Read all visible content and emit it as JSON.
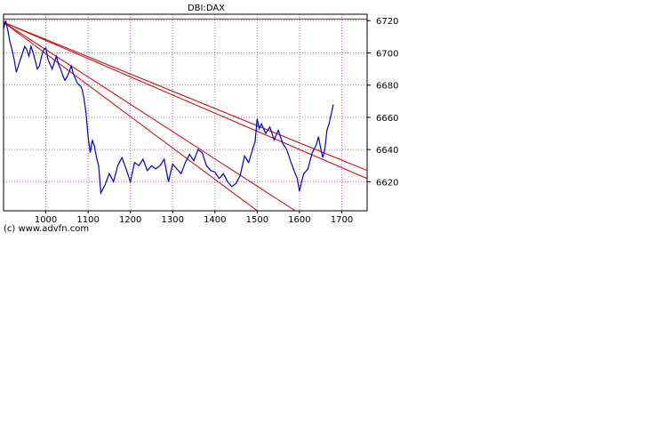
{
  "credit": "(c) www.advfn.com",
  "chart_data": {
    "type": "line",
    "title": "DBI:DAX",
    "xlabel": "",
    "ylabel": "",
    "xlim": [
      900,
      1760
    ],
    "ylim": [
      6602,
      6724
    ],
    "x_ticks": [
      1000,
      1100,
      1200,
      1300,
      1400,
      1500,
      1600,
      1700
    ],
    "y_ticks": [
      6620,
      6640,
      6660,
      6680,
      6700,
      6720
    ],
    "y_axis_position": "right",
    "grid": true,
    "colors": {
      "series": "#0000cc",
      "trendline": "#cc0000",
      "grid": "#b266b2",
      "frame": "#000000"
    },
    "series": [
      {
        "x": [
          900,
          905,
          910,
          915,
          920,
          925,
          930,
          935,
          940,
          945,
          950,
          955,
          960,
          965,
          970,
          975,
          980,
          985,
          990,
          995,
          1000,
          1005,
          1010,
          1015,
          1020,
          1025,
          1030,
          1035,
          1040,
          1045,
          1050,
          1055,
          1060,
          1065,
          1070,
          1075,
          1080,
          1085,
          1090,
          1095,
          1100,
          1105,
          1110,
          1115,
          1120,
          1125,
          1130,
          1140,
          1150,
          1160,
          1170,
          1180,
          1190,
          1200,
          1210,
          1220,
          1230,
          1240,
          1250,
          1260,
          1270,
          1280,
          1290,
          1300,
          1310,
          1320,
          1330,
          1340,
          1350,
          1360,
          1370,
          1380,
          1390,
          1400,
          1410,
          1420,
          1430,
          1440,
          1450,
          1460,
          1470,
          1480,
          1490,
          1495,
          1500,
          1505,
          1510,
          1520,
          1530,
          1540,
          1550,
          1560,
          1570,
          1580,
          1590,
          1595,
          1600,
          1605,
          1610,
          1620,
          1630,
          1640,
          1645,
          1650,
          1655,
          1660,
          1665,
          1670,
          1675,
          1680
        ],
        "values": [
          6715,
          6720,
          6714,
          6707,
          6702,
          6696,
          6688,
          6692,
          6696,
          6700,
          6704,
          6702,
          6698,
          6704,
          6700,
          6695,
          6690,
          6692,
          6698,
          6702,
          6703,
          6696,
          6693,
          6690,
          6694,
          6698,
          6693,
          6690,
          6686,
          6683,
          6685,
          6688,
          6692,
          6687,
          6684,
          6681,
          6680,
          6678,
          6672,
          6663,
          6648,
          6638,
          6646,
          6642,
          6635,
          6630,
          6613,
          6618,
          6625,
          6620,
          6630,
          6635,
          6628,
          6620,
          6632,
          6630,
          6634,
          6627,
          6630,
          6628,
          6630,
          6634,
          6620,
          6631,
          6628,
          6625,
          6632,
          6637,
          6633,
          6640,
          6638,
          6630,
          6627,
          6626,
          6622,
          6625,
          6620,
          6617,
          6619,
          6624,
          6636,
          6632,
          6641,
          6645,
          6659,
          6653,
          6656,
          6650,
          6654,
          6646,
          6652,
          6644,
          6640,
          6632,
          6625,
          6622,
          6614,
          6620,
          6625,
          6628,
          6638,
          6643,
          6648,
          6641,
          6635,
          6640,
          6652,
          6656,
          6662,
          6668
        ]
      }
    ],
    "trendlines": [
      {
        "x": [
          900,
          1760
        ],
        "y": [
          6721,
          6721
        ]
      },
      {
        "x": [
          900,
          1760
        ],
        "y": [
          6719,
          6622
        ]
      },
      {
        "x": [
          900,
          1760
        ],
        "y": [
          6719,
          6627
        ]
      },
      {
        "x": [
          900,
          1590
        ],
        "y": [
          6719,
          6602
        ]
      },
      {
        "x": [
          900,
          1500
        ],
        "y": [
          6719,
          6602
        ]
      }
    ]
  }
}
